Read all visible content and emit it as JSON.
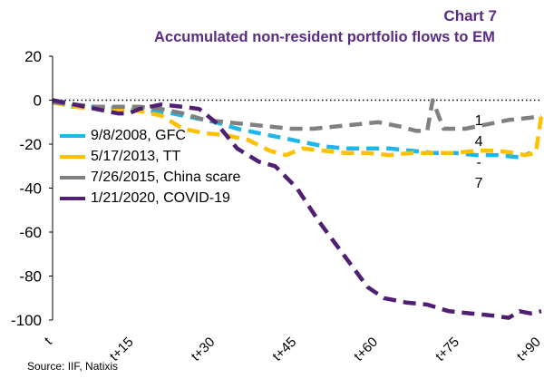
{
  "header": {
    "chart_number": "Chart 7",
    "title": "Accumulated non-resident portfolio flows to EM"
  },
  "source": "Source: IIF, Natixis",
  "colors": {
    "gfc": "#1fb6e9",
    "tt": "#ffc000",
    "china": "#808080",
    "covid": "#4f1f73",
    "title": "#5b2c83"
  },
  "chart_data": {
    "type": "line",
    "title": "Accumulated non-resident portfolio flows to EM",
    "xlabel": "",
    "ylabel": "",
    "ylim": [
      -100,
      20
    ],
    "xlim": [
      0,
      90
    ],
    "yticks": [
      "20",
      "0",
      "-20",
      "-40",
      "-60",
      "-80",
      "-100"
    ],
    "xticks": [
      {
        "x": 0,
        "label": "t"
      },
      {
        "x": 15,
        "label": "t+15"
      },
      {
        "x": 30,
        "label": "t+30"
      },
      {
        "x": 45,
        "label": "t+45"
      },
      {
        "x": 60,
        "label": "t+60"
      },
      {
        "x": 75,
        "label": "t+75"
      },
      {
        "x": 90,
        "label": "t+90"
      }
    ],
    "zero_line": "dotted",
    "annotation": [
      "1",
      "4",
      "-",
      "7"
    ],
    "legend_position": "left",
    "series": [
      {
        "name": "9/8/2008, GFC",
        "color": "#1fb6e9",
        "points": [
          [
            0,
            0
          ],
          [
            3,
            -3
          ],
          [
            8,
            -3
          ],
          [
            13,
            -4
          ],
          [
            18,
            -5
          ],
          [
            22,
            -6
          ],
          [
            26,
            -8
          ],
          [
            30,
            -10
          ],
          [
            34,
            -13
          ],
          [
            38,
            -15
          ],
          [
            42,
            -17
          ],
          [
            46,
            -19
          ],
          [
            50,
            -21
          ],
          [
            54,
            -22
          ],
          [
            58,
            -22
          ],
          [
            62,
            -22
          ],
          [
            66,
            -23
          ],
          [
            70,
            -24
          ],
          [
            74,
            -24
          ],
          [
            78,
            -25
          ],
          [
            82,
            -25
          ],
          [
            86,
            -26
          ],
          [
            88,
            -24
          ]
        ]
      },
      {
        "name": "5/17/2013, TT",
        "color": "#ffc000",
        "points": [
          [
            0,
            -1
          ],
          [
            4,
            -3
          ],
          [
            8,
            -4
          ],
          [
            12,
            -4
          ],
          [
            16,
            -5
          ],
          [
            20,
            -7
          ],
          [
            24,
            -13
          ],
          [
            28,
            -15
          ],
          [
            32,
            -16
          ],
          [
            36,
            -18
          ],
          [
            40,
            -23
          ],
          [
            43,
            -25
          ],
          [
            46,
            -22
          ],
          [
            50,
            -23
          ],
          [
            54,
            -24
          ],
          [
            58,
            -24
          ],
          [
            62,
            -25
          ],
          [
            66,
            -24
          ],
          [
            70,
            -24
          ],
          [
            74,
            -24
          ],
          [
            78,
            -23
          ],
          [
            82,
            -23
          ],
          [
            85,
            -24
          ],
          [
            87,
            -25
          ],
          [
            89,
            -24
          ],
          [
            90,
            -7
          ]
        ]
      },
      {
        "name": "7/26/2015, China scare",
        "color": "#808080",
        "points": [
          [
            0,
            -1
          ],
          [
            4,
            -2
          ],
          [
            8,
            -3
          ],
          [
            12,
            -3
          ],
          [
            16,
            -3
          ],
          [
            20,
            -4
          ],
          [
            24,
            -6
          ],
          [
            28,
            -9
          ],
          [
            32,
            -10
          ],
          [
            36,
            -11
          ],
          [
            40,
            -12
          ],
          [
            44,
            -13
          ],
          [
            48,
            -13
          ],
          [
            52,
            -12
          ],
          [
            56,
            -11
          ],
          [
            60,
            -10
          ],
          [
            64,
            -12
          ],
          [
            67,
            -14
          ],
          [
            69,
            -14
          ],
          [
            70,
            0
          ],
          [
            72,
            -13
          ],
          [
            76,
            -13
          ],
          [
            80,
            -11
          ],
          [
            84,
            -9
          ],
          [
            88,
            -8
          ],
          [
            90,
            -7
          ]
        ]
      },
      {
        "name": "1/21/2020, COVID-19",
        "color": "#4f1f73",
        "points": [
          [
            0,
            0
          ],
          [
            4,
            -2
          ],
          [
            8,
            -4
          ],
          [
            12,
            -6
          ],
          [
            14,
            -6
          ],
          [
            16,
            -4
          ],
          [
            20,
            -2
          ],
          [
            24,
            -3
          ],
          [
            27,
            -4
          ],
          [
            30,
            -10
          ],
          [
            34,
            -22
          ],
          [
            38,
            -28
          ],
          [
            41,
            -30
          ],
          [
            45,
            -40
          ],
          [
            49,
            -55
          ],
          [
            52,
            -65
          ],
          [
            55,
            -75
          ],
          [
            58,
            -85
          ],
          [
            61,
            -90
          ],
          [
            65,
            -92
          ],
          [
            69,
            -93
          ],
          [
            73,
            -96
          ],
          [
            77,
            -97
          ],
          [
            81,
            -98
          ],
          [
            84,
            -99
          ],
          [
            86,
            -96
          ],
          [
            88,
            -97
          ],
          [
            90,
            -96
          ]
        ]
      }
    ]
  }
}
